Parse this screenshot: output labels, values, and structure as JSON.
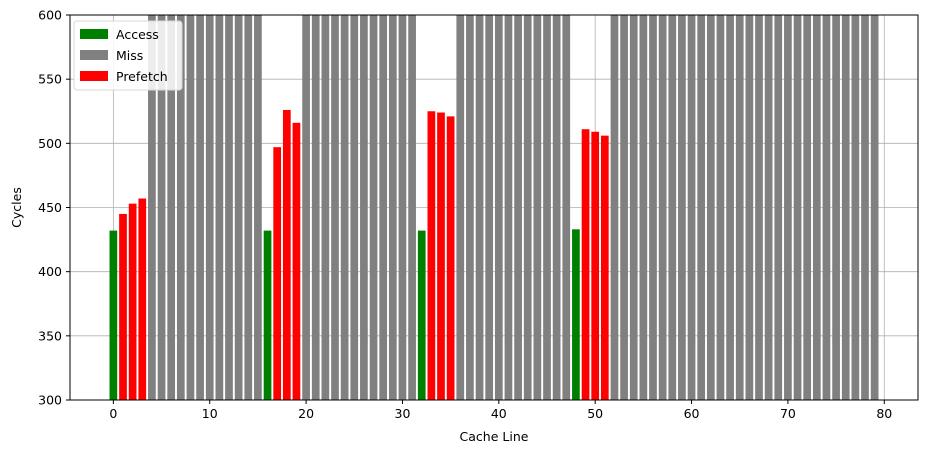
{
  "chart_data": {
    "type": "bar",
    "xlabel": "Cache Line",
    "ylabel": "Cycles",
    "xlim": [
      -4.5,
      83.5
    ],
    "ylim": [
      300,
      600
    ],
    "x_ticks": [
      0,
      10,
      20,
      30,
      40,
      50,
      60,
      70,
      80
    ],
    "y_ticks": [
      300,
      350,
      400,
      450,
      500,
      550,
      600
    ],
    "grid": true,
    "legend_position": "top-left",
    "series": [
      {
        "name": "Access",
        "color": "#008000",
        "points": [
          [
            0,
            432
          ],
          [
            16,
            432
          ],
          [
            32,
            432
          ],
          [
            48,
            433
          ]
        ]
      },
      {
        "name": "Miss",
        "color": "#808080",
        "points": [
          [
            4,
            600
          ],
          [
            5,
            600
          ],
          [
            6,
            600
          ],
          [
            7,
            600
          ],
          [
            8,
            600
          ],
          [
            9,
            600
          ],
          [
            10,
            600
          ],
          [
            11,
            600
          ],
          [
            12,
            600
          ],
          [
            13,
            600
          ],
          [
            14,
            600
          ],
          [
            15,
            600
          ],
          [
            20,
            600
          ],
          [
            21,
            600
          ],
          [
            22,
            600
          ],
          [
            23,
            600
          ],
          [
            24,
            600
          ],
          [
            25,
            600
          ],
          [
            26,
            600
          ],
          [
            27,
            600
          ],
          [
            28,
            600
          ],
          [
            29,
            600
          ],
          [
            30,
            600
          ],
          [
            31,
            600
          ],
          [
            36,
            600
          ],
          [
            37,
            600
          ],
          [
            38,
            600
          ],
          [
            39,
            600
          ],
          [
            40,
            600
          ],
          [
            41,
            600
          ],
          [
            42,
            600
          ],
          [
            43,
            600
          ],
          [
            44,
            600
          ],
          [
            45,
            600
          ],
          [
            46,
            600
          ],
          [
            47,
            600
          ],
          [
            52,
            600
          ],
          [
            53,
            600
          ],
          [
            54,
            600
          ],
          [
            55,
            600
          ],
          [
            56,
            600
          ],
          [
            57,
            600
          ],
          [
            58,
            600
          ],
          [
            59,
            600
          ],
          [
            60,
            600
          ],
          [
            61,
            600
          ],
          [
            62,
            600
          ],
          [
            63,
            600
          ],
          [
            64,
            600
          ],
          [
            65,
            600
          ],
          [
            66,
            600
          ],
          [
            67,
            600
          ],
          [
            68,
            600
          ],
          [
            69,
            600
          ],
          [
            70,
            600
          ],
          [
            71,
            600
          ],
          [
            72,
            600
          ],
          [
            73,
            600
          ],
          [
            74,
            600
          ],
          [
            75,
            600
          ],
          [
            76,
            600
          ],
          [
            77,
            600
          ],
          [
            78,
            600
          ],
          [
            79,
            600
          ]
        ]
      },
      {
        "name": "Prefetch",
        "color": "#ff0000",
        "points": [
          [
            1,
            445
          ],
          [
            2,
            453
          ],
          [
            3,
            457
          ],
          [
            17,
            497
          ],
          [
            18,
            526
          ],
          [
            19,
            516
          ],
          [
            33,
            525
          ],
          [
            34,
            524
          ],
          [
            35,
            521
          ],
          [
            49,
            511
          ],
          [
            50,
            509
          ],
          [
            51,
            506
          ]
        ]
      }
    ]
  }
}
